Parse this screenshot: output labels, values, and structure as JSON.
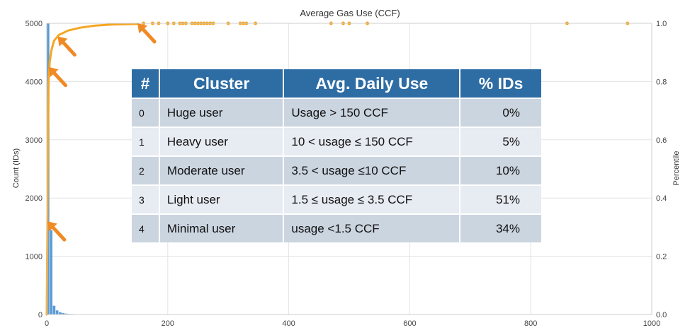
{
  "chart_data": {
    "type": "bar",
    "title": "Average Gas Use (CCF)",
    "xlabel": "",
    "ylabel": "Count (IDs)",
    "y2label": "Percentile",
    "xlim": [
      0,
      1000
    ],
    "ylim": [
      0,
      5000
    ],
    "y2lim": [
      0,
      1.0
    ],
    "xticks": [
      "0",
      "200",
      "400",
      "600",
      "800",
      "1000"
    ],
    "yticks": [
      "0",
      "1000",
      "2000",
      "3000",
      "4000",
      "5000"
    ],
    "y2ticks": [
      "0.0",
      "0.2",
      "0.4",
      "0.6",
      "0.8",
      "1.0"
    ],
    "grid": true,
    "colors": {
      "histogram": "#5b9bd5",
      "cdf": "#f5a623",
      "arrow": "#f08a24"
    },
    "histogram": {
      "bin_width": 5,
      "bins": [
        {
          "x": 0,
          "count": 5000
        },
        {
          "x": 5,
          "count": 1450
        },
        {
          "x": 10,
          "count": 150
        },
        {
          "x": 15,
          "count": 70
        },
        {
          "x": 20,
          "count": 40
        },
        {
          "x": 25,
          "count": 25
        },
        {
          "x": 30,
          "count": 15
        },
        {
          "x": 35,
          "count": 10
        },
        {
          "x": 40,
          "count": 8
        },
        {
          "x": 45,
          "count": 5
        },
        {
          "x": 50,
          "count": 4
        },
        {
          "x": 55,
          "count": 3
        }
      ]
    },
    "cdf_curve": [
      {
        "x": 0,
        "y": 0.0
      },
      {
        "x": 1,
        "y": 0.3
      },
      {
        "x": 2,
        "y": 0.62
      },
      {
        "x": 3,
        "y": 0.8
      },
      {
        "x": 5,
        "y": 0.87
      },
      {
        "x": 8,
        "y": 0.91
      },
      {
        "x": 12,
        "y": 0.94
      },
      {
        "x": 20,
        "y": 0.96
      },
      {
        "x": 35,
        "y": 0.975
      },
      {
        "x": 55,
        "y": 0.985
      },
      {
        "x": 80,
        "y": 0.992
      },
      {
        "x": 110,
        "y": 0.996
      },
      {
        "x": 150,
        "y": 0.998
      }
    ],
    "cdf_outliers_x": [
      160,
      175,
      185,
      200,
      210,
      220,
      225,
      230,
      240,
      245,
      250,
      255,
      260,
      265,
      270,
      275,
      300,
      320,
      325,
      330,
      345,
      470,
      490,
      500,
      530,
      860,
      960
    ],
    "cdf_outliers_y": 1.0,
    "arrow_targets": [
      {
        "x": 1,
        "y": 0.32
      },
      {
        "x": 3,
        "y": 0.85
      },
      {
        "x": 18,
        "y": 0.955
      },
      {
        "x": 150,
        "y": 1.0
      }
    ]
  },
  "table": {
    "headers": [
      "#",
      "Cluster",
      "Avg. Daily Use",
      "% IDs"
    ],
    "rows": [
      {
        "num": "0",
        "cluster": "Huge user",
        "use": "Usage > 150 CCF",
        "pct": "0%"
      },
      {
        "num": "1",
        "cluster": "Heavy user",
        "use": "10 < usage ≤ 150 CCF",
        "pct": "5%"
      },
      {
        "num": "2",
        "cluster": "Moderate user",
        "use": "3.5 < usage ≤10 CCF",
        "pct": "10%"
      },
      {
        "num": "3",
        "cluster": "Light user",
        "use": "1.5 ≤ usage ≤ 3.5 CCF",
        "pct": "51%"
      },
      {
        "num": "4",
        "cluster": "Minimal user",
        "use": "usage <1.5 CCF",
        "pct": "34%"
      }
    ]
  }
}
